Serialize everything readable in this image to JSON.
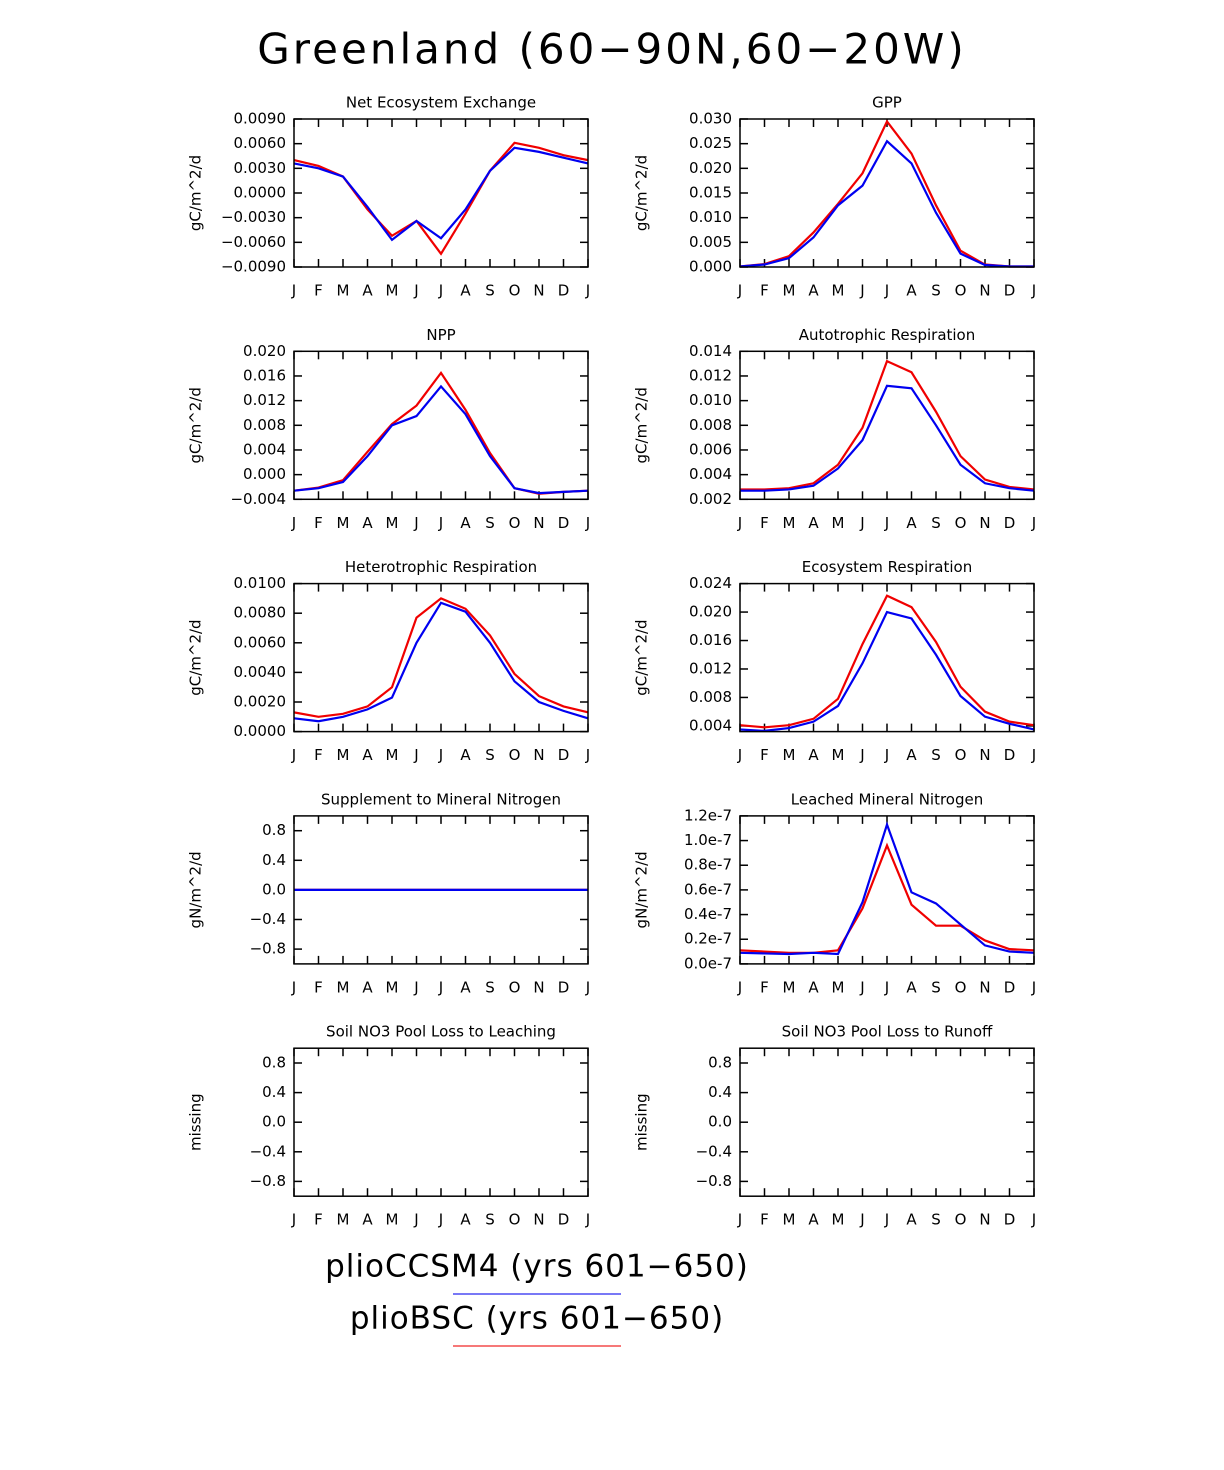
{
  "title": "Greenland (60−90N,60−20W)",
  "chart_data": [
    {
      "type": "line",
      "title": "Net Ecosystem Exchange",
      "y_label": "gC/m^2/d",
      "categories": [
        "J",
        "F",
        "M",
        "A",
        "M",
        "J",
        "J",
        "A",
        "S",
        "O",
        "N",
        "D",
        "J"
      ],
      "ylim": [
        -0.009,
        0.009
      ],
      "yticks": [
        {
          "value": -0.009,
          "label": "−0.0090"
        },
        {
          "value": -0.006,
          "label": "−0.0060"
        },
        {
          "value": -0.003,
          "label": "−0.0030"
        },
        {
          "value": 0,
          "label": "0.0000"
        },
        {
          "value": 0.003,
          "label": "0.0030"
        },
        {
          "value": 0.006,
          "label": "0.0060"
        },
        {
          "value": 0.009,
          "label": "0.0090"
        }
      ],
      "series": [
        {
          "name": "plioCCSM4 (yrs 601−650)",
          "color": "#0000f0",
          "values": [
            0.0036,
            0.003,
            0.002,
            -0.0017,
            -0.0057,
            -0.0034,
            -0.0055,
            -0.002,
            0.0027,
            0.0055,
            0.005,
            0.0043,
            0.0036
          ]
        },
        {
          "name": "plioBSC (yrs 601−650)",
          "color": "#f00000",
          "values": [
            0.004,
            0.0033,
            0.002,
            -0.002,
            -0.0052,
            -0.0034,
            -0.0074,
            -0.0025,
            0.0027,
            0.0061,
            0.0055,
            0.0046,
            0.004
          ]
        }
      ]
    },
    {
      "type": "line",
      "title": "GPP",
      "y_label": "gC/m^2/d",
      "categories": [
        "J",
        "F",
        "M",
        "A",
        "M",
        "J",
        "J",
        "A",
        "S",
        "O",
        "N",
        "D",
        "J"
      ],
      "ylim": [
        0,
        0.03
      ],
      "yticks": [
        {
          "value": 0,
          "label": "0.000"
        },
        {
          "value": 0.005,
          "label": "0.005"
        },
        {
          "value": 0.01,
          "label": "0.010"
        },
        {
          "value": 0.015,
          "label": "0.015"
        },
        {
          "value": 0.02,
          "label": "0.020"
        },
        {
          "value": 0.025,
          "label": "0.025"
        },
        {
          "value": 0.03,
          "label": "0.030"
        }
      ],
      "series": [
        {
          "name": "plioCCSM4 (yrs 601−650)",
          "color": "#0000f0",
          "values": [
            0.0001,
            0.0005,
            0.0018,
            0.006,
            0.0125,
            0.0165,
            0.0255,
            0.021,
            0.011,
            0.0027,
            0.0004,
            0.0001,
            0.0001
          ]
        },
        {
          "name": "plioBSC (yrs 601−650)",
          "color": "#f00000",
          "values": [
            0.0001,
            0.0006,
            0.0022,
            0.007,
            0.0128,
            0.019,
            0.0295,
            0.023,
            0.0125,
            0.0033,
            0.0005,
            0.0001,
            0.0001
          ]
        }
      ]
    },
    {
      "type": "line",
      "title": "NPP",
      "y_label": "gC/m^2/d",
      "categories": [
        "J",
        "F",
        "M",
        "A",
        "M",
        "J",
        "J",
        "A",
        "S",
        "O",
        "N",
        "D",
        "J"
      ],
      "ylim": [
        -0.004,
        0.02
      ],
      "yticks": [
        {
          "value": -0.004,
          "label": "−0.004"
        },
        {
          "value": 0,
          "label": "0.000"
        },
        {
          "value": 0.004,
          "label": "0.004"
        },
        {
          "value": 0.008,
          "label": "0.008"
        },
        {
          "value": 0.012,
          "label": "0.012"
        },
        {
          "value": 0.016,
          "label": "0.016"
        },
        {
          "value": 0.02,
          "label": "0.020"
        }
      ],
      "series": [
        {
          "name": "plioCCSM4 (yrs 601−650)",
          "color": "#0000f0",
          "values": [
            -0.0026,
            -0.0022,
            -0.0012,
            0.003,
            0.008,
            0.0095,
            0.0143,
            0.0098,
            0.003,
            -0.0022,
            -0.003,
            -0.0028,
            -0.0026
          ]
        },
        {
          "name": "plioBSC (yrs 601−650)",
          "color": "#f00000",
          "values": [
            -0.0026,
            -0.0021,
            -0.0009,
            0.0037,
            0.0082,
            0.0112,
            0.0165,
            0.0105,
            0.0035,
            -0.0022,
            -0.0031,
            -0.0028,
            -0.0026
          ]
        }
      ]
    },
    {
      "type": "line",
      "title": "Autotrophic Respiration",
      "y_label": "gC/m^2/d",
      "categories": [
        "J",
        "F",
        "M",
        "A",
        "M",
        "J",
        "J",
        "A",
        "S",
        "O",
        "N",
        "D",
        "J"
      ],
      "ylim": [
        0.002,
        0.014
      ],
      "yticks": [
        {
          "value": 0.002,
          "label": "0.002"
        },
        {
          "value": 0.004,
          "label": "0.004"
        },
        {
          "value": 0.006,
          "label": "0.006"
        },
        {
          "value": 0.008,
          "label": "0.008"
        },
        {
          "value": 0.01,
          "label": "0.010"
        },
        {
          "value": 0.012,
          "label": "0.012"
        },
        {
          "value": 0.014,
          "label": "0.014"
        }
      ],
      "series": [
        {
          "name": "plioCCSM4 (yrs 601−650)",
          "color": "#0000f0",
          "values": [
            0.0027,
            0.0027,
            0.0028,
            0.0031,
            0.0045,
            0.0068,
            0.0112,
            0.011,
            0.008,
            0.0048,
            0.0033,
            0.0029,
            0.0027
          ]
        },
        {
          "name": "plioBSC (yrs 601−650)",
          "color": "#f00000",
          "values": [
            0.0028,
            0.0028,
            0.0029,
            0.0033,
            0.0048,
            0.0078,
            0.0132,
            0.0123,
            0.0091,
            0.0055,
            0.0036,
            0.003,
            0.0028
          ]
        }
      ]
    },
    {
      "type": "line",
      "title": "Heterotrophic Respiration",
      "y_label": "gC/m^2/d",
      "categories": [
        "J",
        "F",
        "M",
        "A",
        "M",
        "J",
        "J",
        "A",
        "S",
        "O",
        "N",
        "D",
        "J"
      ],
      "ylim": [
        0,
        0.01
      ],
      "yticks": [
        {
          "value": 0,
          "label": "0.0000"
        },
        {
          "value": 0.002,
          "label": "0.0020"
        },
        {
          "value": 0.004,
          "label": "0.0040"
        },
        {
          "value": 0.006,
          "label": "0.0060"
        },
        {
          "value": 0.008,
          "label": "0.0080"
        },
        {
          "value": 0.01,
          "label": "0.0100"
        }
      ],
      "series": [
        {
          "name": "plioCCSM4 (yrs 601−650)",
          "color": "#0000f0",
          "values": [
            0.0009,
            0.0007,
            0.001,
            0.0015,
            0.0023,
            0.006,
            0.0087,
            0.0081,
            0.006,
            0.0034,
            0.002,
            0.0014,
            0.0009
          ]
        },
        {
          "name": "plioBSC (yrs 601−650)",
          "color": "#f00000",
          "values": [
            0.0013,
            0.001,
            0.0012,
            0.0017,
            0.003,
            0.0077,
            0.009,
            0.0083,
            0.0065,
            0.0039,
            0.0024,
            0.0017,
            0.0013
          ]
        }
      ]
    },
    {
      "type": "line",
      "title": "Ecosystem Respiration",
      "y_label": "gC/m^2/d",
      "categories": [
        "J",
        "F",
        "M",
        "A",
        "M",
        "J",
        "J",
        "A",
        "S",
        "O",
        "N",
        "D",
        "J"
      ],
      "ylim": [
        0.0032,
        0.024
      ],
      "yticks": [
        {
          "value": 0.004,
          "label": "0.004"
        },
        {
          "value": 0.008,
          "label": "0.008"
        },
        {
          "value": 0.012,
          "label": "0.012"
        },
        {
          "value": 0.016,
          "label": "0.016"
        },
        {
          "value": 0.02,
          "label": "0.020"
        },
        {
          "value": 0.024,
          "label": "0.024"
        }
      ],
      "series": [
        {
          "name": "plioCCSM4 (yrs 601−650)",
          "color": "#0000f0",
          "values": [
            0.0035,
            0.0033,
            0.0037,
            0.0046,
            0.0068,
            0.0128,
            0.02,
            0.0191,
            0.014,
            0.0082,
            0.0053,
            0.0043,
            0.0035
          ]
        },
        {
          "name": "plioBSC (yrs 601−650)",
          "color": "#f00000",
          "values": [
            0.0041,
            0.0038,
            0.0041,
            0.005,
            0.0078,
            0.0155,
            0.0223,
            0.0207,
            0.0158,
            0.0095,
            0.006,
            0.0046,
            0.0041
          ]
        }
      ]
    },
    {
      "type": "line",
      "title": "Supplement to Mineral Nitrogen",
      "y_label": "gN/m^2/d",
      "categories": [
        "J",
        "F",
        "M",
        "A",
        "M",
        "J",
        "J",
        "A",
        "S",
        "O",
        "N",
        "D",
        "J"
      ],
      "ylim": [
        -1,
        1
      ],
      "yticks": [
        {
          "value": -0.8,
          "label": "−0.8"
        },
        {
          "value": -0.4,
          "label": "−0.4"
        },
        {
          "value": 0,
          "label": "0.0"
        },
        0.4,
        0.8
      ],
      "series": [
        {
          "name": "plioCCSM4 (yrs 601−650)",
          "color": "#0000f0",
          "values": [
            0,
            0,
            0,
            0,
            0,
            0,
            0,
            0,
            0,
            0,
            0,
            0,
            0
          ]
        },
        {
          "name": "plioBSC (yrs 601−650)",
          "color": "#f00000",
          "values": [
            0,
            0,
            0,
            0,
            0,
            0,
            0,
            0,
            0,
            0,
            0,
            0,
            0
          ]
        }
      ]
    },
    {
      "type": "line",
      "title": "Leached Mineral Nitrogen",
      "y_label": "gN/m^2/d",
      "categories": [
        "J",
        "F",
        "M",
        "A",
        "M",
        "J",
        "J",
        "A",
        "S",
        "O",
        "N",
        "D",
        "J"
      ],
      "ylim": [
        0,
        1.2e-07
      ],
      "yticks": [
        {
          "value": 0,
          "label": "0.0e-7"
        },
        {
          "value": 2e-08,
          "label": "0.2e-7"
        },
        {
          "value": 4e-08,
          "label": "0.4e-7"
        },
        {
          "value": 6e-08,
          "label": "0.6e-7"
        },
        {
          "value": 8e-08,
          "label": "0.8e-7"
        },
        {
          "value": 1e-07,
          "label": "1.0e-7"
        },
        {
          "value": 1.2e-07,
          "label": "1.2e-7"
        }
      ],
      "series": [
        {
          "name": "plioCCSM4 (yrs 601−650)",
          "color": "#0000f0",
          "values": [
            9e-09,
            8.5e-09,
            8e-09,
            9e-09,
            8e-09,
            5e-08,
            1.13e-07,
            5.8e-08,
            4.9e-08,
            3.2e-08,
            1.5e-08,
            1e-08,
            9e-09
          ]
        },
        {
          "name": "plioBSC (yrs 601−650)",
          "color": "#f00000",
          "values": [
            1.1e-08,
            1e-08,
            9e-09,
            9e-09,
            1.1e-08,
            4.5e-08,
            9.6e-08,
            4.8e-08,
            3.1e-08,
            3.1e-08,
            1.9e-08,
            1.2e-08,
            1.1e-08
          ]
        }
      ]
    },
    {
      "type": "line",
      "title": "Soil NO3 Pool Loss to Leaching",
      "y_label": "missing",
      "categories": [
        "J",
        "F",
        "M",
        "A",
        "M",
        "J",
        "J",
        "A",
        "S",
        "O",
        "N",
        "D",
        "J"
      ],
      "ylim": [
        -1,
        1
      ],
      "yticks": [
        {
          "value": -0.8,
          "label": "−0.8"
        },
        {
          "value": -0.4,
          "label": "−0.4"
        },
        {
          "value": 0,
          "label": "0.0"
        },
        0.4,
        0.8
      ],
      "series": []
    },
    {
      "type": "line",
      "title": "Soil NO3 Pool Loss to Runoff",
      "y_label": "missing",
      "categories": [
        "J",
        "F",
        "M",
        "A",
        "M",
        "J",
        "J",
        "A",
        "S",
        "O",
        "N",
        "D",
        "J"
      ],
      "ylim": [
        -1,
        1
      ],
      "yticks": [
        {
          "value": -0.8,
          "label": "−0.8"
        },
        {
          "value": -0.4,
          "label": "−0.4"
        },
        {
          "value": 0,
          "label": "0.0"
        },
        0.4,
        0.8
      ],
      "series": []
    }
  ]
}
